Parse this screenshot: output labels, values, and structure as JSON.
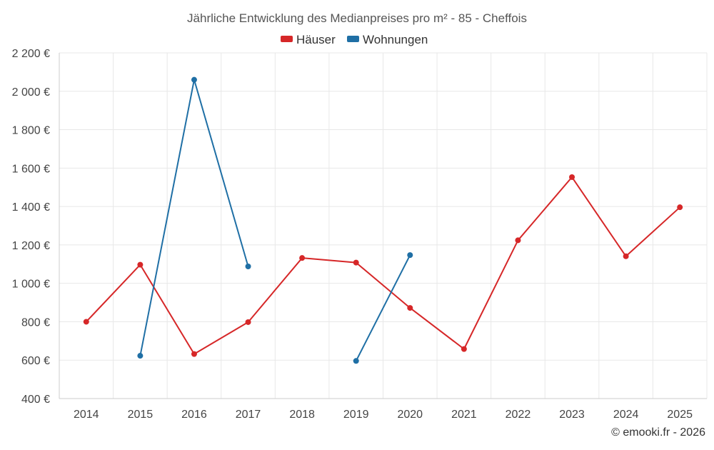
{
  "chart_data": {
    "type": "line",
    "title": "Jährliche Entwicklung des Medianpreises pro m² - 85 - Cheffois",
    "categories": [
      "2014",
      "2015",
      "2016",
      "2017",
      "2018",
      "2019",
      "2020",
      "2021",
      "2022",
      "2023",
      "2024",
      "2025"
    ],
    "series": [
      {
        "name": "Häuser",
        "color": "#d62728",
        "values": [
          800,
          1097,
          632,
          798,
          1132,
          1108,
          872,
          658,
          1224,
          1553,
          1141,
          1396
        ]
      },
      {
        "name": "Wohnungen",
        "color": "#1f6fa5",
        "values": [
          null,
          623,
          2060,
          1088,
          null,
          596,
          1147,
          null,
          null,
          null,
          null,
          null
        ]
      }
    ],
    "ylim": [
      400,
      2200
    ],
    "yticks": [
      400,
      600,
      800,
      1000,
      1200,
      1400,
      1600,
      1800,
      2000,
      2200
    ],
    "ytick_labels": [
      "400 €",
      "600 €",
      "800 €",
      "1 000 €",
      "1 200 €",
      "1 400 €",
      "1 600 €",
      "1 800 €",
      "2 000 €",
      "2 200 €"
    ],
    "grid": true,
    "legend_position": "top-center",
    "credit": "© emooki.fr - 2026"
  }
}
